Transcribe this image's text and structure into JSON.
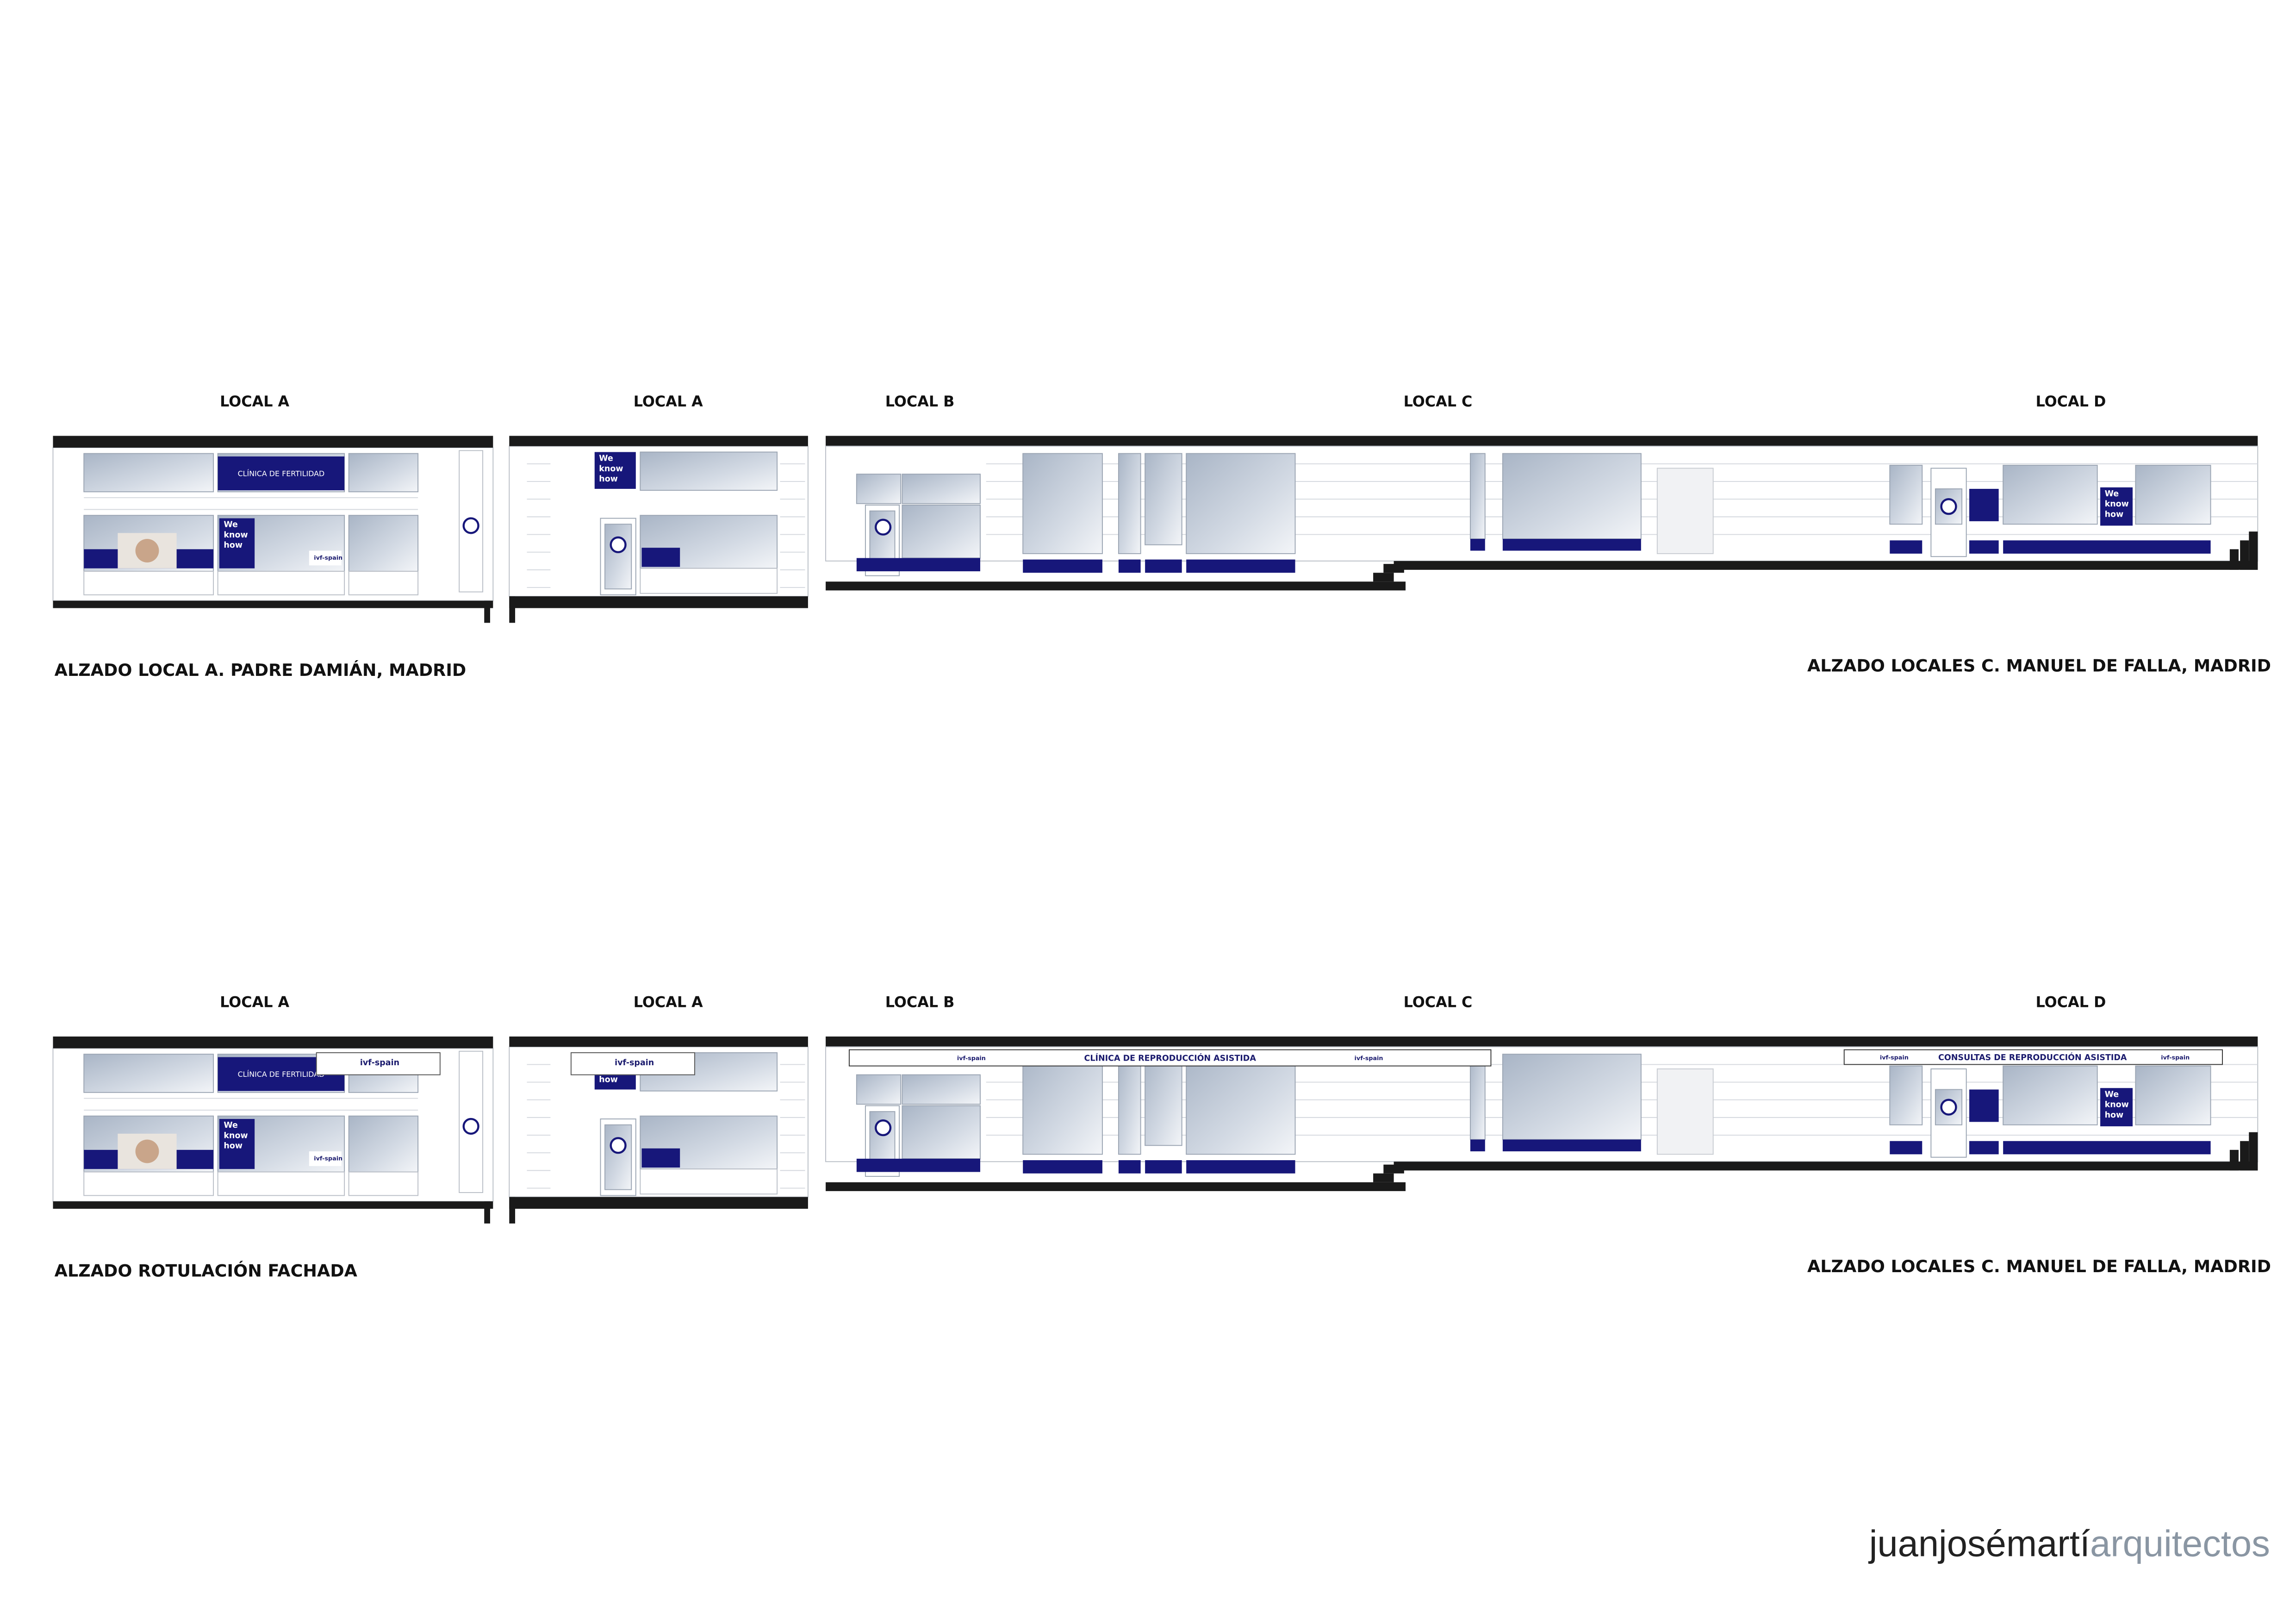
{
  "elevations": [
    {
      "labels": [
        "LOCAL A",
        "LOCAL A",
        "LOCAL B",
        "LOCAL C",
        "LOCAL D"
      ],
      "captions": [
        "ALZADO LOCAL A. PADRE DAMIÁN, MADRID",
        "ALZADO LOCALES C. MANUEL DE FALLA, MADRID"
      ]
    },
    {
      "labels": [
        "LOCAL A",
        "LOCAL A",
        "LOCAL B",
        "LOCAL C",
        "LOCAL D"
      ],
      "captions": [
        "ALZADO ROTULACIÓN FACHADA",
        "ALZADO LOCALES C. MANUEL DE FALLA, MADRID"
      ],
      "signs": [
        "CLÍNICA DE REPRODUCCIÓN ASISTIDA",
        "CONSULTAS DE REPRODUCCIÓN ASISTIDA"
      ]
    }
  ],
  "signage": {
    "clinic": "CLÍNICA DE FERTILIDAD",
    "slogan": [
      "We",
      "know",
      "how"
    ],
    "brand": "ivf-spain"
  },
  "footer": {
    "studio_name": "juanjosémartí",
    "studio_suffix": "arquitectos"
  }
}
